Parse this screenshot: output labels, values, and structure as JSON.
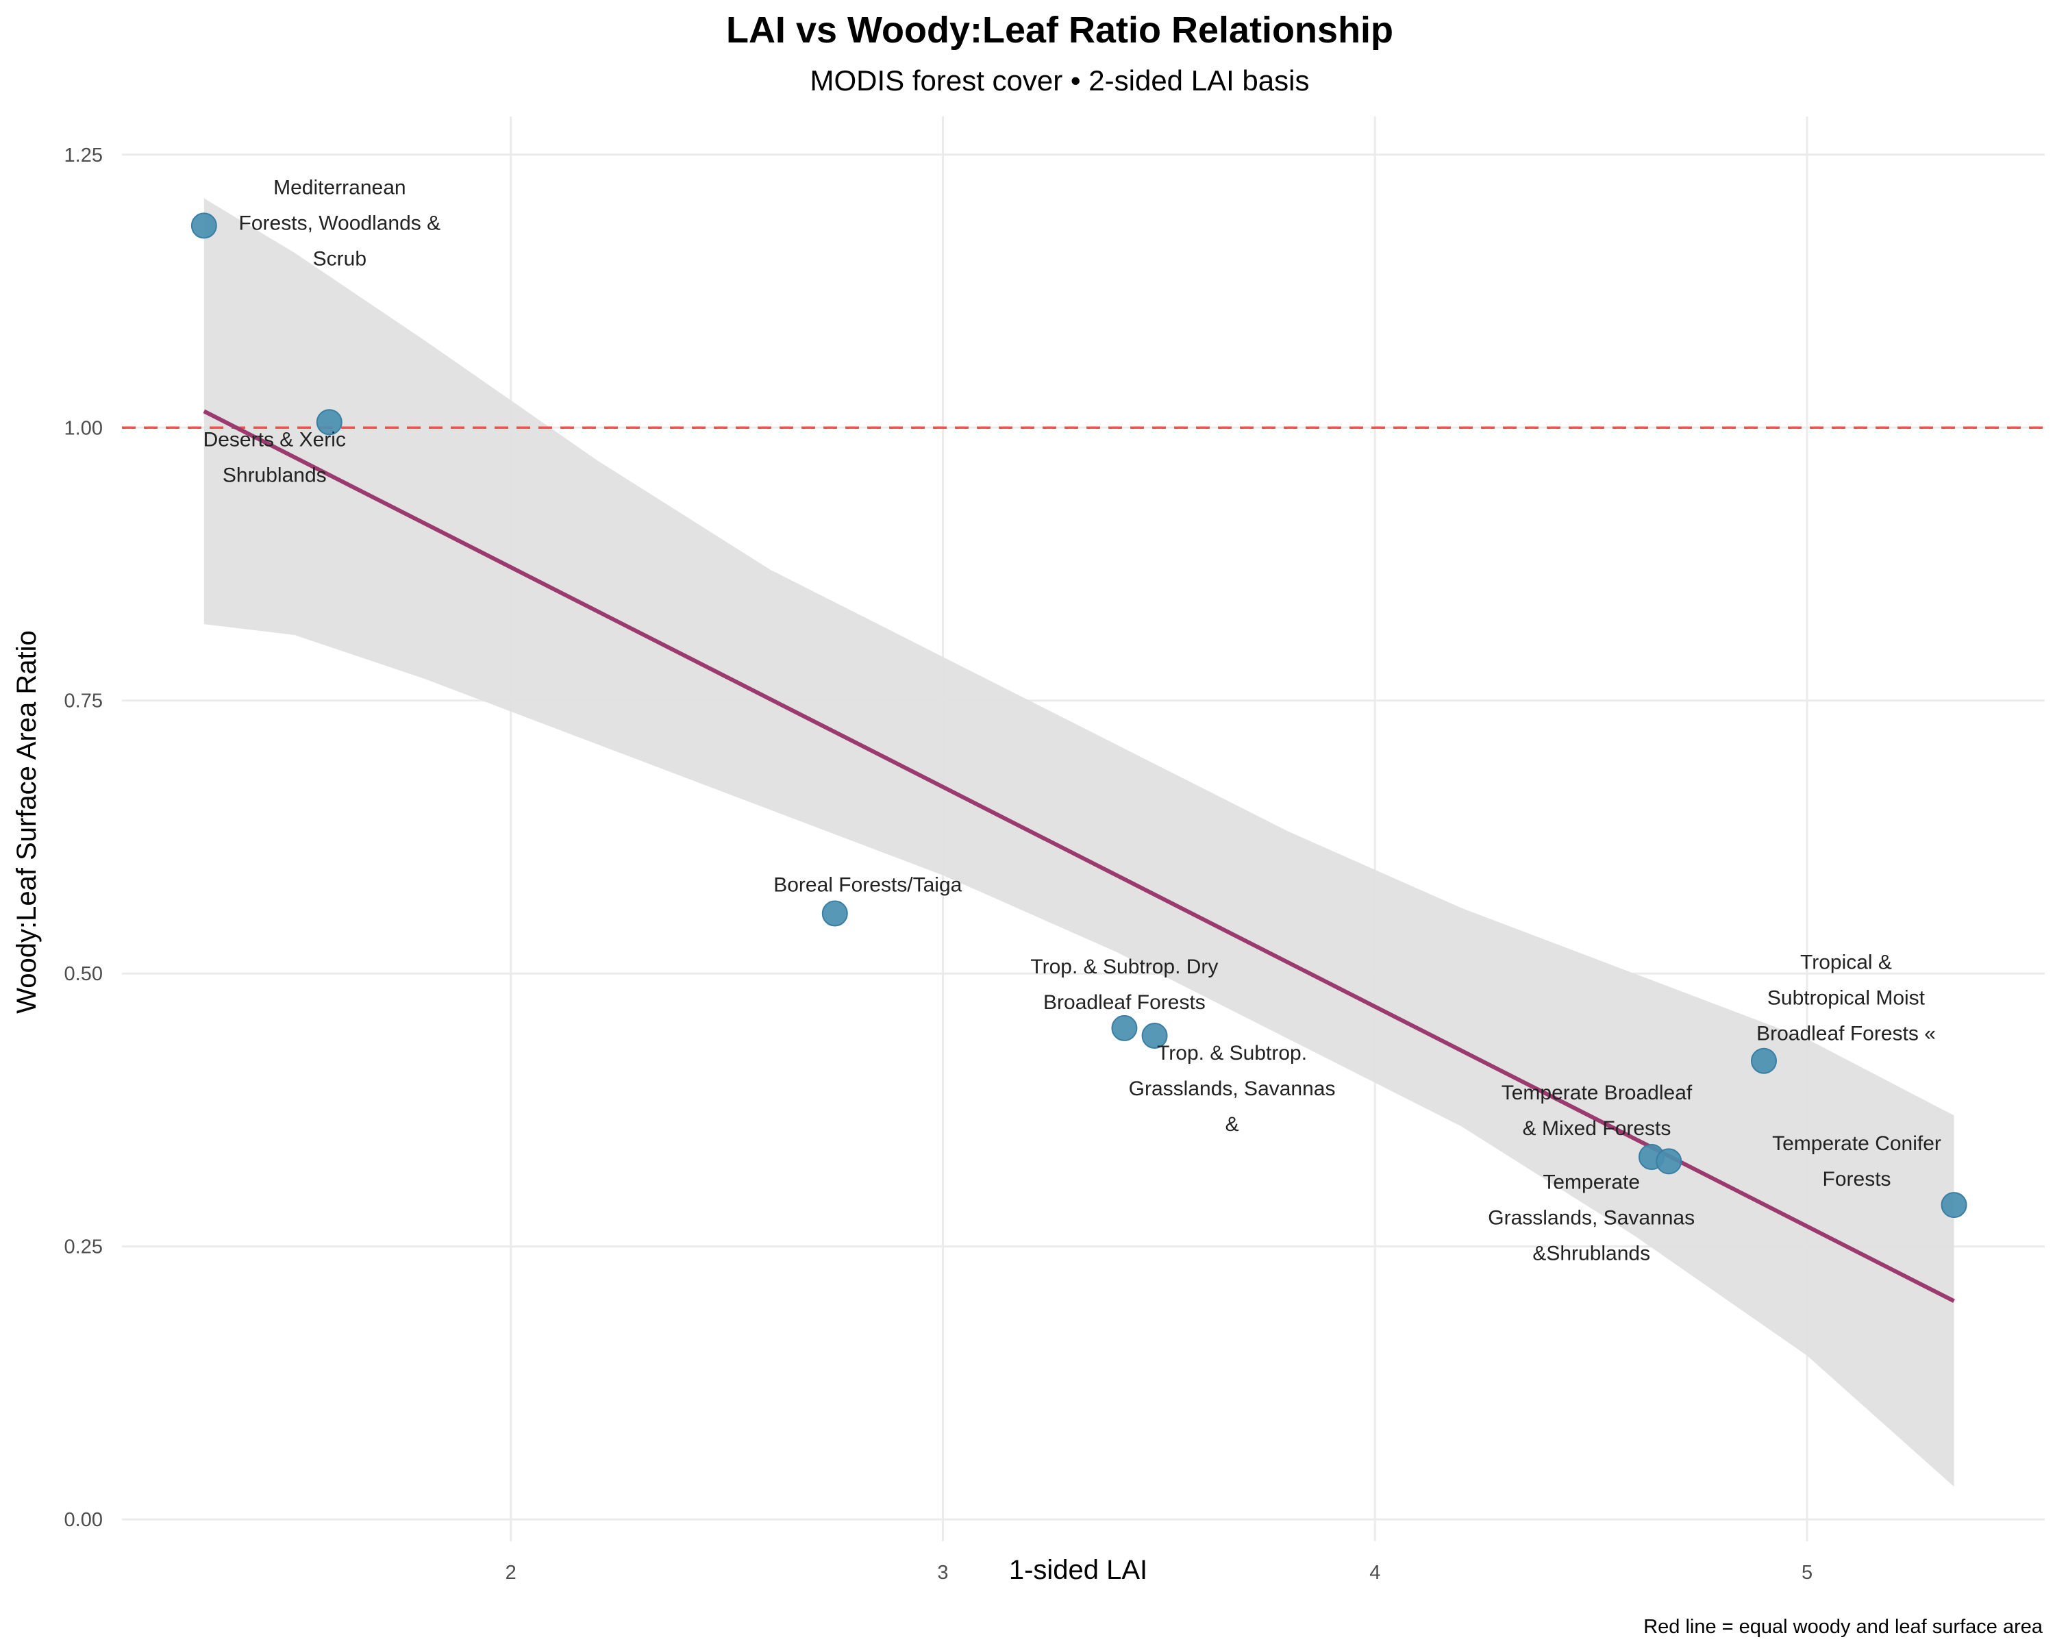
{
  "chart_data": {
    "type": "scatter",
    "title": "LAI vs Woody:Leaf Ratio Relationship",
    "subtitle": "MODIS forest cover • 2-sided LAI basis",
    "xlabel": "1-sided LAI",
    "ylabel": "Woody:Leaf Surface Area Ratio",
    "caption": "Red line = equal woody and leaf surface area",
    "xlim": [
      1.1,
      5.55
    ],
    "ylim": [
      -0.02,
      1.285
    ],
    "x_ticks": [
      2,
      3,
      4,
      5
    ],
    "x_tick_labels": [
      "2",
      "3",
      "4",
      "5"
    ],
    "y_ticks": [
      0,
      0.25,
      0.5,
      0.75,
      1.0,
      1.25
    ],
    "y_tick_labels": [
      "0.00",
      "0.25",
      "0.50",
      "0.75",
      "1.00",
      "1.25"
    ],
    "grid": true,
    "points": [
      {
        "x": 1.29,
        "y": 1.185,
        "label": [
          "Mediterranean",
          "Forests, Woodlands &",
          "Scrub"
        ]
      },
      {
        "x": 1.58,
        "y": 1.005,
        "label": [
          "Deserts & Xeric",
          "Shrublands"
        ]
      },
      {
        "x": 2.75,
        "y": 0.555,
        "label": [
          "Boreal Forests/Taiga"
        ]
      },
      {
        "x": 3.42,
        "y": 0.45,
        "label": [
          "Trop. & Subtrop. Dry",
          "Broadleaf Forests"
        ]
      },
      {
        "x": 3.49,
        "y": 0.443,
        "label": [
          "Trop. & Subtrop.",
          "Grasslands, Savannas",
          "&"
        ]
      },
      {
        "x": 4.64,
        "y": 0.332,
        "label": [
          "Temperate Broadleaf",
          "& Mixed Forests"
        ]
      },
      {
        "x": 4.68,
        "y": 0.328,
        "label": [
          "Temperate",
          "Grasslands, Savannas",
          "&Shrublands"
        ]
      },
      {
        "x": 4.9,
        "y": 0.42,
        "label": [
          "Tropical &",
          "Subtropical Moist",
          "Broadleaf Forests «"
        ]
      },
      {
        "x": 5.34,
        "y": 0.288,
        "label": [
          "Temperate Conifer",
          "Forests"
        ]
      }
    ],
    "trend_line": {
      "x": [
        1.29,
        5.34
      ],
      "y": [
        1.015,
        0.2
      ]
    },
    "confidence_band": {
      "x": [
        1.29,
        1.5,
        1.8,
        2.2,
        2.6,
        3.0,
        3.4,
        3.8,
        4.2,
        4.6,
        5.0,
        5.34
      ],
      "upper": [
        1.21,
        1.16,
        1.08,
        0.97,
        0.87,
        0.79,
        0.71,
        0.63,
        0.56,
        0.5,
        0.44,
        0.37
      ],
      "lower": [
        0.82,
        0.81,
        0.77,
        0.71,
        0.65,
        0.59,
        0.52,
        0.44,
        0.36,
        0.26,
        0.15,
        0.03
      ]
    },
    "reference_line": {
      "y": 1.0,
      "style": "dashed",
      "color": "#ff4d4d"
    },
    "colors": {
      "points": "#4a8fb1",
      "point_edge": "#3a7ea3",
      "trend": "#9b3a6e",
      "band": "#e0e0e0",
      "reference": "#ff4d4d"
    }
  }
}
